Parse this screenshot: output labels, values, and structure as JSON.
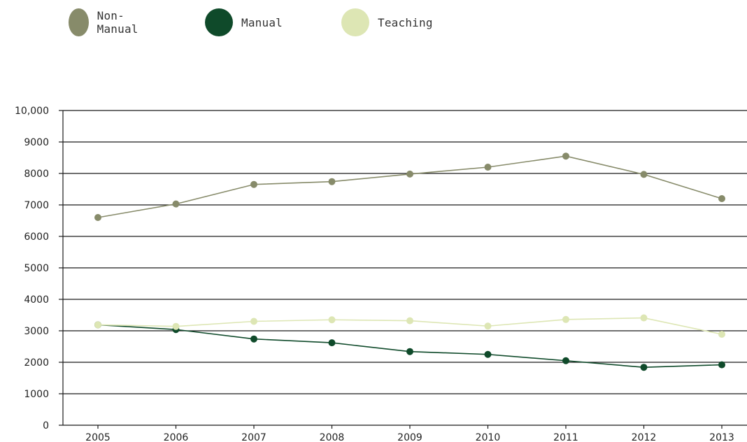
{
  "chart_data": {
    "type": "line",
    "categories": [
      "2005",
      "2006",
      "2007",
      "2008",
      "2009",
      "2010",
      "2011",
      "2012",
      "2013"
    ],
    "series": [
      {
        "name": "Non-Manual",
        "color": "#878b6a",
        "values": [
          6600,
          7030,
          7650,
          7740,
          7980,
          8200,
          8550,
          7970,
          7200
        ]
      },
      {
        "name": "Manual",
        "color": "#0f4a2a",
        "values": [
          3190,
          3040,
          2740,
          2620,
          2340,
          2250,
          2050,
          1840,
          1920
        ]
      },
      {
        "name": "Teaching",
        "color": "#dde6b4",
        "values": [
          3190,
          3140,
          3300,
          3350,
          3320,
          3150,
          3360,
          3410,
          2890
        ]
      }
    ],
    "yticks": [
      "0",
      "1000",
      "2000",
      "3000",
      "4000",
      "5000",
      "6000",
      "7000",
      "8000",
      "9000",
      "10,000"
    ],
    "ylim": [
      0,
      10000
    ],
    "grid": true,
    "legend_position": "top-left",
    "title": "",
    "xlabel": "",
    "ylabel": ""
  }
}
